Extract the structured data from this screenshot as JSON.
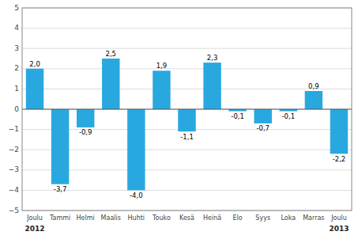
{
  "chart_data": {
    "type": "bar",
    "categories": [
      "Joulu",
      "Tammi",
      "Helmi",
      "Maalis",
      "Huhti",
      "Touko",
      "Kesä",
      "Heinä",
      "Elo",
      "Syys",
      "Loka",
      "Marras",
      "Joulu"
    ],
    "values": [
      2.0,
      -3.7,
      -0.9,
      2.5,
      -4.0,
      1.9,
      -1.1,
      2.3,
      -0.1,
      -0.7,
      -0.1,
      0.9,
      -2.2
    ],
    "value_labels": [
      "2,0",
      "-3,7",
      "-0,9",
      "2,5",
      "-4,0",
      "1,9",
      "-1,1",
      "2,3",
      "-0,1",
      "-0,7",
      "-0,1",
      "0,9",
      "-2,2"
    ],
    "data_labels": true,
    "color": "#29a8e0",
    "ylim": [
      -5,
      5
    ],
    "yticks": [
      {
        "value": -5,
        "label": "−5"
      },
      {
        "value": -4,
        "label": "−4"
      },
      {
        "value": -3,
        "label": "−3"
      },
      {
        "value": -2,
        "label": "−2"
      },
      {
        "value": -1,
        "label": "−1"
      },
      0,
      1,
      2,
      3,
      4,
      5
    ],
    "grid": true,
    "annotations": [
      {
        "text": "2012",
        "x": 0
      },
      {
        "text": "2013",
        "x": 12
      }
    ]
  }
}
